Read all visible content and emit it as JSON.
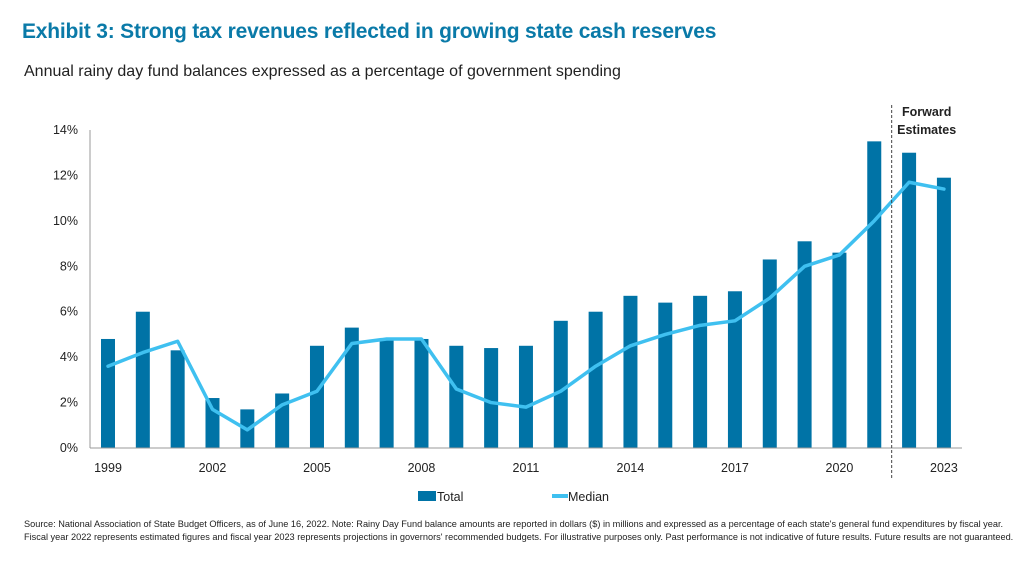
{
  "title": "Exhibit 3: Strong tax revenues reflected in growing state cash reserves",
  "subtitle": "Annual rainy day fund balances expressed as a percentage of government spending",
  "footnote": "Source: National Association of State Budget Officers, as of June 16, 2022. Note: Rainy Day Fund balance amounts are reported in dollars ($) in millions and expressed as a percentage of each state's general fund expenditures by fiscal year. Fiscal year 2022 represents estimated figures and fiscal year 2023 represents projections in governors' recommended budgets. For illustrative purposes only. Past performance is not indicative of future results. Future results are not guaranteed.",
  "chart_data": {
    "type": "bar",
    "categories": [
      1999,
      2000,
      2001,
      2002,
      2003,
      2004,
      2005,
      2006,
      2007,
      2008,
      2009,
      2010,
      2011,
      2012,
      2013,
      2014,
      2015,
      2016,
      2017,
      2018,
      2019,
      2020,
      2021,
      2022,
      2023
    ],
    "x_tick_labels": [
      "1999",
      "2002",
      "2005",
      "2008",
      "2011",
      "2014",
      "2017",
      "2020",
      "2023"
    ],
    "y_tick_labels": [
      "0%",
      "2%",
      "4%",
      "6%",
      "8%",
      "10%",
      "12%",
      "14%"
    ],
    "ylim": [
      0,
      14
    ],
    "grid": false,
    "legend_placement": "bottom",
    "series": [
      {
        "name": "Total",
        "kind": "bar",
        "color": "#0073a6",
        "values": [
          4.8,
          6.0,
          4.3,
          2.2,
          1.7,
          2.4,
          4.5,
          5.3,
          4.8,
          4.8,
          4.5,
          4.4,
          4.5,
          5.6,
          6.0,
          6.7,
          6.4,
          6.7,
          6.9,
          8.3,
          9.1,
          8.6,
          13.5,
          13.0,
          11.9
        ]
      },
      {
        "name": "Median",
        "kind": "line",
        "color": "#3fc0f0",
        "values": [
          3.6,
          4.2,
          4.7,
          1.7,
          0.8,
          1.9,
          2.5,
          4.6,
          4.8,
          4.8,
          2.6,
          2.0,
          1.8,
          2.5,
          3.6,
          4.5,
          5.0,
          5.4,
          5.6,
          6.6,
          8.0,
          8.5,
          10.0,
          11.7,
          11.4
        ]
      }
    ],
    "annotation": {
      "label_line1": "Forward",
      "label_line2": "Estimates",
      "between": [
        2021,
        2022
      ]
    }
  }
}
